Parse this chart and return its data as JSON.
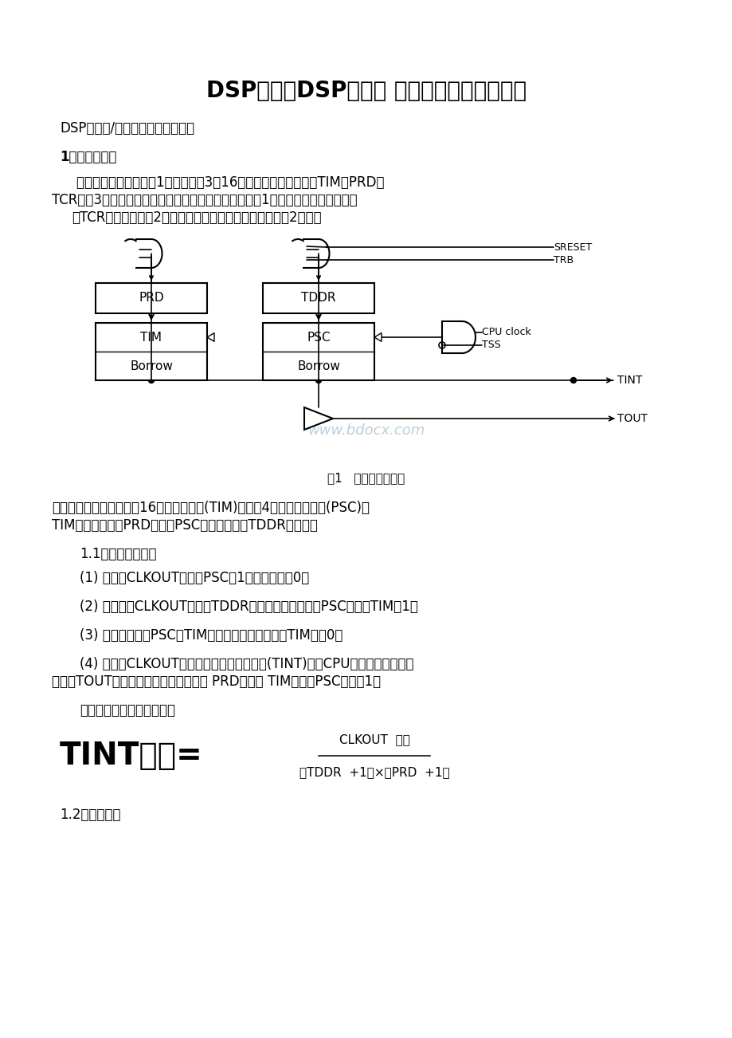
{
  "title": "DSP计数器DSP定时器 计数器原理及设计举例",
  "subtitle": "DSP定时器/计数器原理及设计举例",
  "section1": "1、定时器结构",
  "para1_l1": "    定时器的组成框图如图1所示。它有3个16位存储器映像寄存器：TIM、PRD和",
  "para1_l2": "TCR。这3个寄存器在数据存储器中的地址及其说明如表1所示。定时器控制寄存器",
  "para1_l3": "（TCR）位结构如图2所示，各控制位和状态位的功能如表2所示。",
  "fig_caption": "图1   定时器组成框图",
  "note_l1": "（说明：图中包括，一个16位的主计数器(TIM)和一个4位预定标计数器(PSC)。",
  "note_l2": "TIM从周期寄存器PRD加载，PSC从周期寄存器TDDR加载。）",
  "section11": "1.1典型操作顺序：",
  "item1": "(1) 在每个CLKOUT脉冲后PSC减1，直到它变为0。",
  "item2": "(2) 在下一个CLKOUT周期，TDDR加载新的除计数值到PSC，并使TIM减1。",
  "item3": "(3) 以同样方式，PSC和TIM连续进行减操作，直到TIM减为0。",
  "item4_l1": "(4) 下一个CLKOUT周期，将定时器中断信号(TINT)送到CPU，同时又用另一脉",
  "item4_l2": "冲送到TOUT引脚，把新定时器计数值从 PRD加载到 TIM，并使PSC再次减1。",
  "para_rate": "因此，定时器中断的速率为",
  "tint_big": "TINT速率=",
  "formula_num": "CLKOUT  频率",
  "formula_den": "（TDDR  +1）×（PRD  +1）",
  "section12": "1.2定时器编程",
  "watermark": "www.bdocx.com",
  "bg_color": "#ffffff",
  "text_color": "#000000",
  "watermark_color": "#aec8d8",
  "sreset": "SRESET",
  "trb": "TRB",
  "cpu_clock": "CPU clock",
  "tss": "TSS",
  "tint": "TINT",
  "tout": "TOUT",
  "prd": "PRD",
  "tddr": "TDDR",
  "tim": "TIM",
  "psc": "PSC",
  "borrow": "Borrow"
}
